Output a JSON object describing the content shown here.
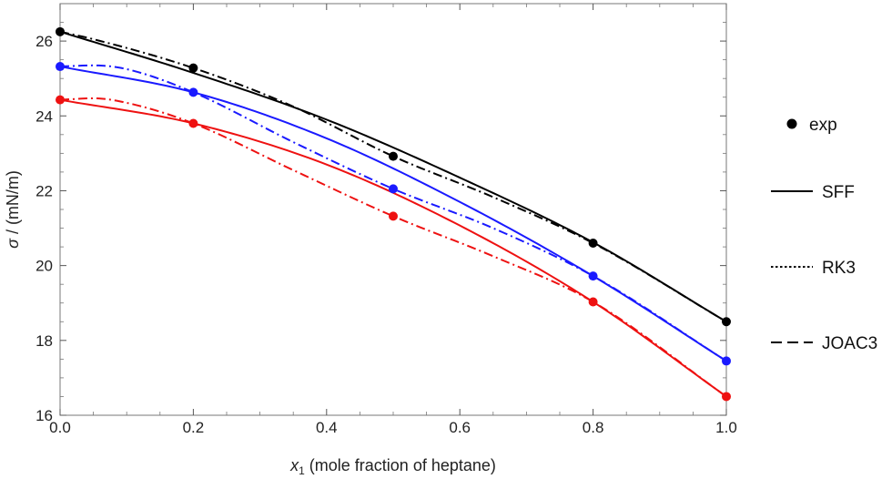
{
  "chart_data": {
    "type": "line",
    "xlabel_var": "x",
    "xlabel_sub": "1",
    "xlabel_rest": " (mole fraction of heptane)",
    "ylabel_var": "σ",
    "ylabel_rest": " / (mN/m)",
    "xlim": [
      0.0,
      1.0
    ],
    "ylim": [
      16,
      27
    ],
    "xticks": [
      "0.0",
      "0.2",
      "0.4",
      "0.6",
      "0.8",
      "1.0"
    ],
    "yticks": [
      "16",
      "18",
      "20",
      "22",
      "24",
      "26"
    ],
    "legend": [
      {
        "label": "exp",
        "style": "marker"
      },
      {
        "label": "SFF",
        "style": "solid"
      },
      {
        "label": "RK3",
        "style": "dotted"
      },
      {
        "label": "JOAC3",
        "style": "dashed"
      }
    ],
    "systems": [
      {
        "color": "#000000",
        "exp": {
          "x": [
            0.0,
            0.2,
            0.5,
            0.8,
            1.0
          ],
          "y": [
            26.25,
            25.28,
            22.92,
            20.6,
            18.5
          ]
        },
        "sff": {
          "x": [
            0.0,
            0.2,
            0.4,
            0.6,
            0.8,
            1.0
          ],
          "y": [
            26.25,
            25.15,
            23.9,
            22.35,
            20.62,
            18.5
          ]
        },
        "dashdot": {
          "x": [
            0.0,
            0.05,
            0.2,
            0.35,
            0.5,
            0.65,
            0.8,
            1.0
          ],
          "y": [
            26.25,
            26.05,
            25.28,
            24.25,
            22.92,
            21.83,
            20.6,
            18.5
          ]
        }
      },
      {
        "color": "#1a1aff",
        "exp": {
          "x": [
            0.0,
            0.2,
            0.5,
            0.8,
            1.0
          ],
          "y": [
            25.32,
            24.63,
            22.05,
            19.72,
            17.45
          ]
        },
        "sff": {
          "x": [
            0.0,
            0.2,
            0.4,
            0.6,
            0.8,
            1.0
          ],
          "y": [
            25.32,
            24.63,
            23.4,
            21.7,
            19.72,
            17.45
          ]
        },
        "dashdot": {
          "x": [
            0.0,
            0.05,
            0.1,
            0.2,
            0.35,
            0.5,
            0.65,
            0.8,
            1.0
          ],
          "y": [
            25.32,
            25.35,
            25.25,
            24.63,
            23.3,
            22.05,
            21.0,
            19.72,
            17.45
          ]
        }
      },
      {
        "color": "#ee1111",
        "exp": {
          "x": [
            0.0,
            0.2,
            0.5,
            0.8,
            1.0
          ],
          "y": [
            24.43,
            23.8,
            21.32,
            19.03,
            16.5
          ]
        },
        "sff": {
          "x": [
            0.0,
            0.2,
            0.4,
            0.6,
            0.8,
            1.0
          ],
          "y": [
            24.43,
            23.8,
            22.7,
            21.07,
            19.03,
            16.5
          ]
        },
        "dashdot": {
          "x": [
            0.0,
            0.05,
            0.1,
            0.2,
            0.35,
            0.5,
            0.65,
            0.8,
            1.0
          ],
          "y": [
            24.43,
            24.47,
            24.35,
            23.8,
            22.55,
            21.32,
            20.25,
            19.03,
            16.5
          ]
        }
      }
    ]
  }
}
